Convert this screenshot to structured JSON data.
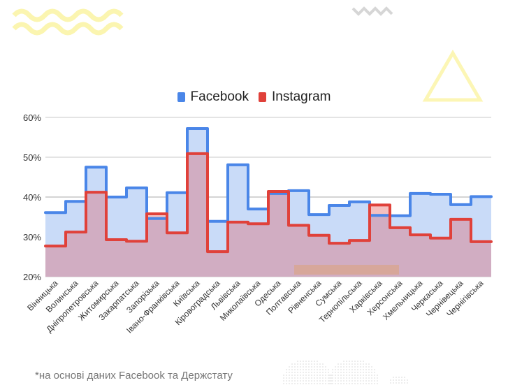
{
  "footnote": "*на основі даних Facebook та Держстату",
  "colors": {
    "facebook_line": "#4a86e8",
    "facebook_fill": "#c9dbf8",
    "instagram_line": "#e0413a",
    "instagram_fill": "#d1a7bb",
    "grid": "#c8c8c8",
    "deco_yellow": "#fbf5b0",
    "deco_gray": "#d3d3d3"
  },
  "chart_data": {
    "type": "area",
    "style": "stepped",
    "title": "",
    "xlabel": "",
    "ylabel": "",
    "ylim": [
      20,
      60
    ],
    "yticks": [
      "20%",
      "30%",
      "40%",
      "50%",
      "60%"
    ],
    "ytick_values": [
      20,
      30,
      40,
      50,
      60
    ],
    "grid": true,
    "legend_position": "top-center",
    "categories": [
      "Вінницька",
      "Волинська",
      "Дніпропетровська",
      "Житомирська",
      "Закарпатська",
      "Запорізька",
      "Івано-Франківська",
      "Київська",
      "Кіровоградська",
      "Львівська",
      "Миколаївська",
      "Одеська",
      "Полтавська",
      "Рівненська",
      "Сумська",
      "Тернопільська",
      "Харківська",
      "Херсонська",
      "Хмельницька",
      "Черкаська",
      "Чернівецька",
      "Чернігівська"
    ],
    "series": [
      {
        "name": "Facebook",
        "values": [
          36.1,
          38.9,
          47.5,
          40.0,
          42.3,
          34.6,
          41.1,
          57.2,
          33.9,
          48.1,
          37.0,
          40.9,
          41.6,
          35.6,
          37.9,
          38.8,
          35.4,
          35.3,
          40.9,
          40.7,
          38.1,
          40.1
        ]
      },
      {
        "name": "Instagram",
        "values": [
          27.7,
          31.2,
          41.2,
          29.3,
          28.9,
          35.8,
          31.0,
          50.9,
          26.3,
          33.7,
          33.3,
          41.4,
          32.9,
          30.4,
          28.4,
          29.1,
          38.0,
          32.3,
          30.5,
          29.7,
          34.4,
          28.8
        ]
      }
    ]
  }
}
